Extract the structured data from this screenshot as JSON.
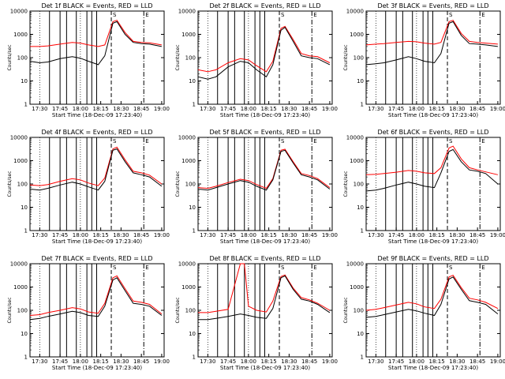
{
  "x_ticks": [
    "17:30",
    "17:45",
    "18:00",
    "18:15",
    "18:30",
    "18:45",
    "19:00"
  ],
  "y_ticks": [
    "1",
    "10",
    "100",
    "1000",
    "10000"
  ],
  "x_axis_label": "Start Time (18-Dec-09 17:23:40)",
  "y_axis_label": "Counts/sec",
  "markers": {
    "S": "S",
    "E": "E"
  },
  "colors": {
    "events": "#000000",
    "lld": "#ff0000",
    "background": "#ffffff"
  },
  "chart_data": [
    {
      "type": "line",
      "title": "Det 1f BLACK = Events, RED = LLD",
      "events": [
        [
          17.38,
          70
        ],
        [
          17.5,
          60
        ],
        [
          17.6,
          65
        ],
        [
          17.75,
          90
        ],
        [
          17.9,
          110
        ],
        [
          18.0,
          95
        ],
        [
          18.1,
          70
        ],
        [
          18.22,
          50
        ],
        [
          18.3,
          120
        ],
        [
          18.4,
          3000
        ],
        [
          18.45,
          3500
        ],
        [
          18.55,
          1000
        ],
        [
          18.65,
          450
        ],
        [
          18.75,
          400
        ],
        [
          18.85,
          380
        ],
        [
          19.0,
          300
        ]
      ],
      "lld": [
        [
          17.38,
          300
        ],
        [
          17.5,
          300
        ],
        [
          17.6,
          320
        ],
        [
          17.75,
          380
        ],
        [
          17.9,
          450
        ],
        [
          18.0,
          420
        ],
        [
          18.1,
          350
        ],
        [
          18.22,
          300
        ],
        [
          18.3,
          350
        ],
        [
          18.4,
          3500
        ],
        [
          18.45,
          4000
        ],
        [
          18.55,
          1200
        ],
        [
          18.65,
          500
        ],
        [
          18.75,
          450
        ],
        [
          18.85,
          430
        ],
        [
          19.0,
          350
        ]
      ]
    },
    {
      "type": "line",
      "title": "Det 2f BLACK = Events, RED = LLD",
      "events": [
        [
          17.38,
          15
        ],
        [
          17.5,
          12
        ],
        [
          17.6,
          15
        ],
        [
          17.75,
          40
        ],
        [
          17.9,
          70
        ],
        [
          18.0,
          60
        ],
        [
          18.1,
          30
        ],
        [
          18.22,
          15
        ],
        [
          18.3,
          50
        ],
        [
          18.4,
          1500
        ],
        [
          18.45,
          2000
        ],
        [
          18.55,
          500
        ],
        [
          18.65,
          120
        ],
        [
          18.75,
          100
        ],
        [
          18.85,
          90
        ],
        [
          19.0,
          50
        ]
      ],
      "lld": [
        [
          17.38,
          30
        ],
        [
          17.5,
          25
        ],
        [
          17.6,
          30
        ],
        [
          17.75,
          60
        ],
        [
          17.9,
          90
        ],
        [
          18.0,
          80
        ],
        [
          18.1,
          45
        ],
        [
          18.22,
          25
        ],
        [
          18.3,
          70
        ],
        [
          18.4,
          1800
        ],
        [
          18.45,
          2200
        ],
        [
          18.55,
          600
        ],
        [
          18.65,
          150
        ],
        [
          18.75,
          120
        ],
        [
          18.85,
          110
        ],
        [
          19.0,
          60
        ]
      ]
    },
    {
      "type": "line",
      "title": "Det 3f BLACK = Events, RED = LLD",
      "events": [
        [
          17.38,
          50
        ],
        [
          17.5,
          55
        ],
        [
          17.6,
          60
        ],
        [
          17.75,
          80
        ],
        [
          17.9,
          110
        ],
        [
          18.0,
          90
        ],
        [
          18.1,
          70
        ],
        [
          18.22,
          60
        ],
        [
          18.3,
          150
        ],
        [
          18.4,
          3000
        ],
        [
          18.45,
          3500
        ],
        [
          18.55,
          900
        ],
        [
          18.65,
          400
        ],
        [
          18.75,
          380
        ],
        [
          18.85,
          350
        ],
        [
          19.0,
          300
        ]
      ],
      "lld": [
        [
          17.38,
          350
        ],
        [
          17.5,
          380
        ],
        [
          17.6,
          400
        ],
        [
          17.75,
          450
        ],
        [
          17.9,
          500
        ],
        [
          18.0,
          480
        ],
        [
          18.1,
          420
        ],
        [
          18.22,
          380
        ],
        [
          18.3,
          450
        ],
        [
          18.4,
          3500
        ],
        [
          18.45,
          4000
        ],
        [
          18.55,
          1100
        ],
        [
          18.65,
          500
        ],
        [
          18.75,
          450
        ],
        [
          18.85,
          420
        ],
        [
          19.0,
          380
        ]
      ]
    },
    {
      "type": "line",
      "title": "Det 4f BLACK = Events, RED = LLD",
      "events": [
        [
          17.38,
          60
        ],
        [
          17.5,
          55
        ],
        [
          17.6,
          65
        ],
        [
          17.75,
          90
        ],
        [
          17.9,
          120
        ],
        [
          18.0,
          100
        ],
        [
          18.1,
          75
        ],
        [
          18.22,
          55
        ],
        [
          18.3,
          130
        ],
        [
          18.4,
          2800
        ],
        [
          18.45,
          3200
        ],
        [
          18.55,
          900
        ],
        [
          18.65,
          300
        ],
        [
          18.75,
          250
        ],
        [
          18.85,
          200
        ],
        [
          19.0,
          80
        ]
      ],
      "lld": [
        [
          17.38,
          90
        ],
        [
          17.5,
          85
        ],
        [
          17.6,
          95
        ],
        [
          17.75,
          130
        ],
        [
          17.9,
          170
        ],
        [
          18.0,
          150
        ],
        [
          18.1,
          110
        ],
        [
          18.22,
          85
        ],
        [
          18.3,
          180
        ],
        [
          18.4,
          3200
        ],
        [
          18.45,
          3800
        ],
        [
          18.55,
          1100
        ],
        [
          18.65,
          350
        ],
        [
          18.75,
          300
        ],
        [
          18.85,
          240
        ],
        [
          19.0,
          100
        ]
      ]
    },
    {
      "type": "line",
      "title": "Det 5f BLACK = Events, RED = LLD",
      "events": [
        [
          17.38,
          60
        ],
        [
          17.5,
          55
        ],
        [
          17.6,
          70
        ],
        [
          17.75,
          100
        ],
        [
          17.9,
          140
        ],
        [
          18.0,
          120
        ],
        [
          18.1,
          80
        ],
        [
          18.22,
          55
        ],
        [
          18.3,
          150
        ],
        [
          18.4,
          2500
        ],
        [
          18.45,
          2800
        ],
        [
          18.55,
          800
        ],
        [
          18.65,
          250
        ],
        [
          18.75,
          200
        ],
        [
          18.85,
          150
        ],
        [
          19.0,
          60
        ]
      ],
      "lld": [
        [
          17.38,
          70
        ],
        [
          17.5,
          65
        ],
        [
          17.6,
          80
        ],
        [
          17.75,
          115
        ],
        [
          17.9,
          160
        ],
        [
          18.0,
          140
        ],
        [
          18.1,
          95
        ],
        [
          18.22,
          65
        ],
        [
          18.3,
          170
        ],
        [
          18.4,
          2800
        ],
        [
          18.45,
          3100
        ],
        [
          18.55,
          900
        ],
        [
          18.65,
          280
        ],
        [
          18.75,
          230
        ],
        [
          18.85,
          170
        ],
        [
          19.0,
          70
        ]
      ]
    },
    {
      "type": "line",
      "title": "Det 6f BLACK = Events, RED = LLD",
      "events": [
        [
          17.38,
          50
        ],
        [
          17.5,
          55
        ],
        [
          17.6,
          65
        ],
        [
          17.75,
          90
        ],
        [
          17.9,
          120
        ],
        [
          18.0,
          100
        ],
        [
          18.1,
          80
        ],
        [
          18.22,
          70
        ],
        [
          18.3,
          300
        ],
        [
          18.4,
          2500
        ],
        [
          18.45,
          3000
        ],
        [
          18.55,
          900
        ],
        [
          18.65,
          400
        ],
        [
          18.75,
          350
        ],
        [
          18.85,
          280
        ],
        [
          19.0,
          100
        ]
      ],
      "lld": [
        [
          17.38,
          250
        ],
        [
          17.5,
          260
        ],
        [
          17.6,
          280
        ],
        [
          17.75,
          320
        ],
        [
          17.9,
          380
        ],
        [
          18.0,
          350
        ],
        [
          18.1,
          300
        ],
        [
          18.22,
          280
        ],
        [
          18.3,
          500
        ],
        [
          18.4,
          3500
        ],
        [
          18.45,
          4200
        ],
        [
          18.55,
          1200
        ],
        [
          18.65,
          500
        ],
        [
          18.75,
          400
        ],
        [
          18.85,
          330
        ],
        [
          19.0,
          250
        ]
      ]
    },
    {
      "type": "line",
      "title": "Det 7f BLACK = Events, RED = LLD",
      "events": [
        [
          17.38,
          40
        ],
        [
          17.5,
          45
        ],
        [
          17.6,
          55
        ],
        [
          17.75,
          70
        ],
        [
          17.9,
          90
        ],
        [
          18.0,
          80
        ],
        [
          18.1,
          60
        ],
        [
          18.22,
          55
        ],
        [
          18.3,
          150
        ],
        [
          18.4,
          2000
        ],
        [
          18.45,
          2500
        ],
        [
          18.55,
          700
        ],
        [
          18.65,
          200
        ],
        [
          18.75,
          180
        ],
        [
          18.85,
          150
        ],
        [
          19.0,
          60
        ]
      ],
      "lld": [
        [
          17.38,
          60
        ],
        [
          17.5,
          65
        ],
        [
          17.6,
          80
        ],
        [
          17.75,
          100
        ],
        [
          17.9,
          130
        ],
        [
          18.0,
          115
        ],
        [
          18.1,
          85
        ],
        [
          18.22,
          75
        ],
        [
          18.3,
          200
        ],
        [
          18.4,
          2500
        ],
        [
          18.45,
          3000
        ],
        [
          18.55,
          850
        ],
        [
          18.65,
          250
        ],
        [
          18.75,
          220
        ],
        [
          18.85,
          180
        ],
        [
          19.0,
          70
        ]
      ]
    },
    {
      "type": "line",
      "title": "Det 8f BLACK = Events, RED = LLD",
      "events": [
        [
          17.38,
          40
        ],
        [
          17.5,
          40
        ],
        [
          17.6,
          45
        ],
        [
          17.75,
          55
        ],
        [
          17.9,
          70
        ],
        [
          18.0,
          60
        ],
        [
          18.1,
          50
        ],
        [
          18.22,
          45
        ],
        [
          18.3,
          120
        ],
        [
          18.4,
          2500
        ],
        [
          18.45,
          3000
        ],
        [
          18.55,
          800
        ],
        [
          18.65,
          300
        ],
        [
          18.75,
          250
        ],
        [
          18.85,
          180
        ],
        [
          19.0,
          80
        ]
      ],
      "lld": [
        [
          17.38,
          80
        ],
        [
          17.5,
          80
        ],
        [
          17.6,
          90
        ],
        [
          17.75,
          110
        ],
        [
          17.9,
          10000
        ],
        [
          17.95,
          10000
        ],
        [
          18.0,
          150
        ],
        [
          18.1,
          100
        ],
        [
          18.22,
          85
        ],
        [
          18.3,
          250
        ],
        [
          18.4,
          2800
        ],
        [
          18.45,
          3300
        ],
        [
          18.55,
          900
        ],
        [
          18.65,
          350
        ],
        [
          18.75,
          280
        ],
        [
          18.85,
          200
        ],
        [
          19.0,
          100
        ]
      ]
    },
    {
      "type": "line",
      "title": "Det 9f BLACK = Events, RED = LLD",
      "events": [
        [
          17.38,
          50
        ],
        [
          17.5,
          55
        ],
        [
          17.6,
          65
        ],
        [
          17.75,
          85
        ],
        [
          17.9,
          110
        ],
        [
          18.0,
          95
        ],
        [
          18.1,
          75
        ],
        [
          18.22,
          60
        ],
        [
          18.3,
          180
        ],
        [
          18.4,
          2200
        ],
        [
          18.45,
          2700
        ],
        [
          18.55,
          800
        ],
        [
          18.65,
          260
        ],
        [
          18.75,
          220
        ],
        [
          18.85,
          180
        ],
        [
          19.0,
          70
        ]
      ],
      "lld": [
        [
          17.38,
          100
        ],
        [
          17.5,
          110
        ],
        [
          17.6,
          130
        ],
        [
          17.75,
          170
        ],
        [
          17.9,
          220
        ],
        [
          18.0,
          190
        ],
        [
          18.1,
          140
        ],
        [
          18.22,
          120
        ],
        [
          18.3,
          300
        ],
        [
          18.4,
          2700
        ],
        [
          18.45,
          3200
        ],
        [
          18.55,
          950
        ],
        [
          18.65,
          330
        ],
        [
          18.75,
          280
        ],
        [
          18.85,
          220
        ],
        [
          19.0,
          120
        ]
      ]
    }
  ]
}
